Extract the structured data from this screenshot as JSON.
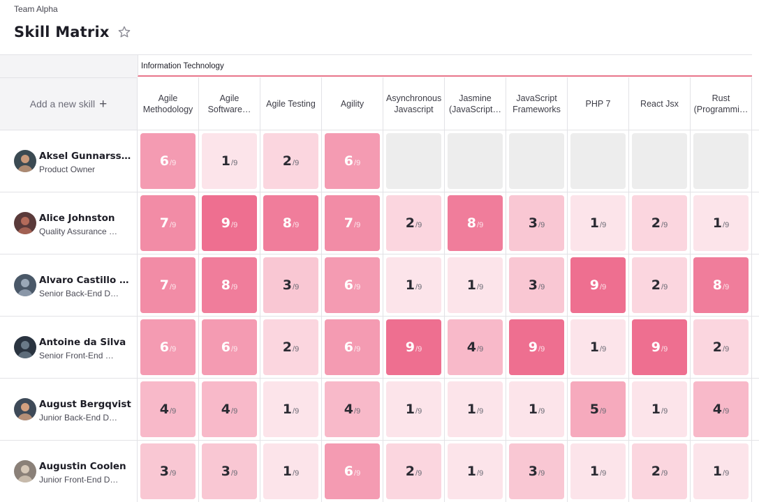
{
  "header": {
    "team": "Team Alpha",
    "title": "Skill Matrix"
  },
  "matrix": {
    "category": "Information Technology",
    "add_skill_label": "Add a new skill",
    "max_label": "/9",
    "skills": [
      "Agile Methodology",
      "Agile Software…",
      "Agile Testing",
      "Agility",
      "Asynchronous Javascript",
      "Jasmine (JavaScript…",
      "JavaScript Frameworks",
      "PHP 7",
      "React Jsx",
      "Rust (Programmi…"
    ],
    "people": [
      {
        "name": "Aksel Gunnarss…",
        "role": "Product Owner",
        "scores": [
          6,
          1,
          2,
          6,
          null,
          null,
          null,
          null,
          null,
          null
        ]
      },
      {
        "name": "Alice Johnston",
        "role": "Quality Assurance …",
        "scores": [
          7,
          9,
          8,
          7,
          2,
          8,
          3,
          1,
          2,
          1
        ]
      },
      {
        "name": "Alvaro Castillo …",
        "role": "Senior Back-End D…",
        "scores": [
          7,
          8,
          3,
          6,
          1,
          1,
          3,
          9,
          2,
          8
        ]
      },
      {
        "name": "Antoine da Silva",
        "role": "Senior Front-End …",
        "scores": [
          6,
          6,
          2,
          6,
          9,
          4,
          9,
          1,
          9,
          2
        ]
      },
      {
        "name": "August Bergqvist",
        "role": "Junior Back-End D…",
        "scores": [
          4,
          4,
          1,
          4,
          1,
          1,
          1,
          5,
          1,
          4
        ]
      },
      {
        "name": "Augustin Coolen",
        "role": "Junior Front-End D…",
        "scores": [
          3,
          3,
          1,
          6,
          2,
          1,
          3,
          1,
          2,
          1
        ]
      }
    ]
  },
  "colors": {
    "accent_line": "#e8758a",
    "empty_cell": "#ededed",
    "level_1": "#fce4ea",
    "level_2": "#fbd6df",
    "level_3": "#f9c7d3",
    "level_4": "#f8b9c9",
    "level_5": "#f6aabd",
    "level_6": "#f49bb2",
    "level_7": "#f28ca6",
    "level_8": "#f07d9b",
    "level_9": "#ee6f90"
  }
}
